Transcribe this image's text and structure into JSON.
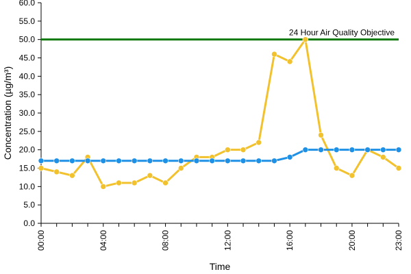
{
  "chart_data": {
    "type": "line",
    "title": "",
    "xlabel": "Time",
    "ylabel": "Concentration (µg/m³)",
    "ylim": [
      0,
      60
    ],
    "y_ticks": [
      "0.0",
      "5.0",
      "10.0",
      "15.0",
      "20.0",
      "25.0",
      "30.0",
      "35.0",
      "40.0",
      "45.0",
      "50.0",
      "55.0",
      "60.0"
    ],
    "x": [
      "00:00",
      "01:00",
      "02:00",
      "03:00",
      "04:00",
      "05:00",
      "06:00",
      "07:00",
      "08:00",
      "09:00",
      "10:00",
      "11:00",
      "12:00",
      "13:00",
      "14:00",
      "15:00",
      "16:00",
      "17:00",
      "18:00",
      "19:00",
      "20:00",
      "21:00",
      "22:00",
      "23:00"
    ],
    "x_tick_labels": [
      "00:00",
      "04:00",
      "08:00",
      "12:00",
      "16:00",
      "20:00",
      "23:00"
    ],
    "grid": false,
    "legend": "none",
    "series": [
      {
        "color": "#f2c12e",
        "values": [
          15,
          14,
          13,
          18,
          10,
          11,
          11,
          13,
          11,
          15,
          18,
          18,
          20,
          20,
          22,
          46,
          44,
          50,
          24,
          15,
          13,
          20,
          18,
          15
        ]
      },
      {
        "color": "#1e90e6",
        "values": [
          17,
          17,
          17,
          17,
          17,
          17,
          17,
          17,
          17,
          17,
          17,
          17,
          17,
          17,
          17,
          17,
          18,
          20,
          20,
          20,
          20,
          20,
          20,
          20
        ]
      }
    ],
    "reference_line": {
      "value": 50,
      "label": "24 Hour Air Quality Objective",
      "color": "#0e7a0e"
    }
  }
}
